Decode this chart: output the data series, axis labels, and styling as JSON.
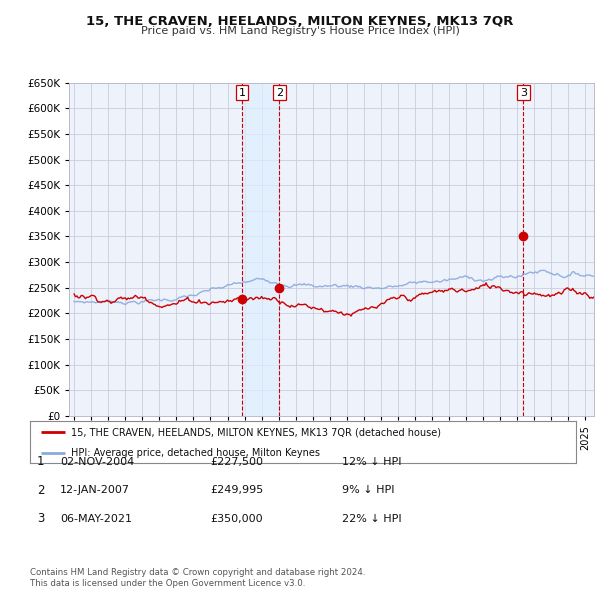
{
  "title": "15, THE CRAVEN, HEELANDS, MILTON KEYNES, MK13 7QR",
  "subtitle": "Price paid vs. HM Land Registry's House Price Index (HPI)",
  "legend_label_red": "15, THE CRAVEN, HEELANDS, MILTON KEYNES, MK13 7QR (detached house)",
  "legend_label_blue": "HPI: Average price, detached house, Milton Keynes",
  "transactions": [
    {
      "num": 1,
      "date": "02-NOV-2004",
      "price": "£227,500",
      "pct": "12% ↓ HPI",
      "year": 2004.84,
      "price_val": 227500
    },
    {
      "num": 2,
      "date": "12-JAN-2007",
      "price": "£249,995",
      "pct": "9% ↓ HPI",
      "year": 2007.04,
      "price_val": 249995
    },
    {
      "num": 3,
      "date": "06-MAY-2021",
      "price": "£350,000",
      "pct": "22% ↓ HPI",
      "year": 2021.35,
      "price_val": 350000
    }
  ],
  "footer": "Contains HM Land Registry data © Crown copyright and database right 2024.\nThis data is licensed under the Open Government Licence v3.0.",
  "ylim": [
    0,
    650000
  ],
  "yticks": [
    0,
    50000,
    100000,
    150000,
    200000,
    250000,
    300000,
    350000,
    400000,
    450000,
    500000,
    550000,
    600000,
    650000
  ],
  "red_color": "#cc0000",
  "blue_color": "#88aadd",
  "vline_color": "#cc0000",
  "shade_color": "#ddeeff",
  "background_plot": "#eef2fb",
  "grid_color": "#ccccdd"
}
